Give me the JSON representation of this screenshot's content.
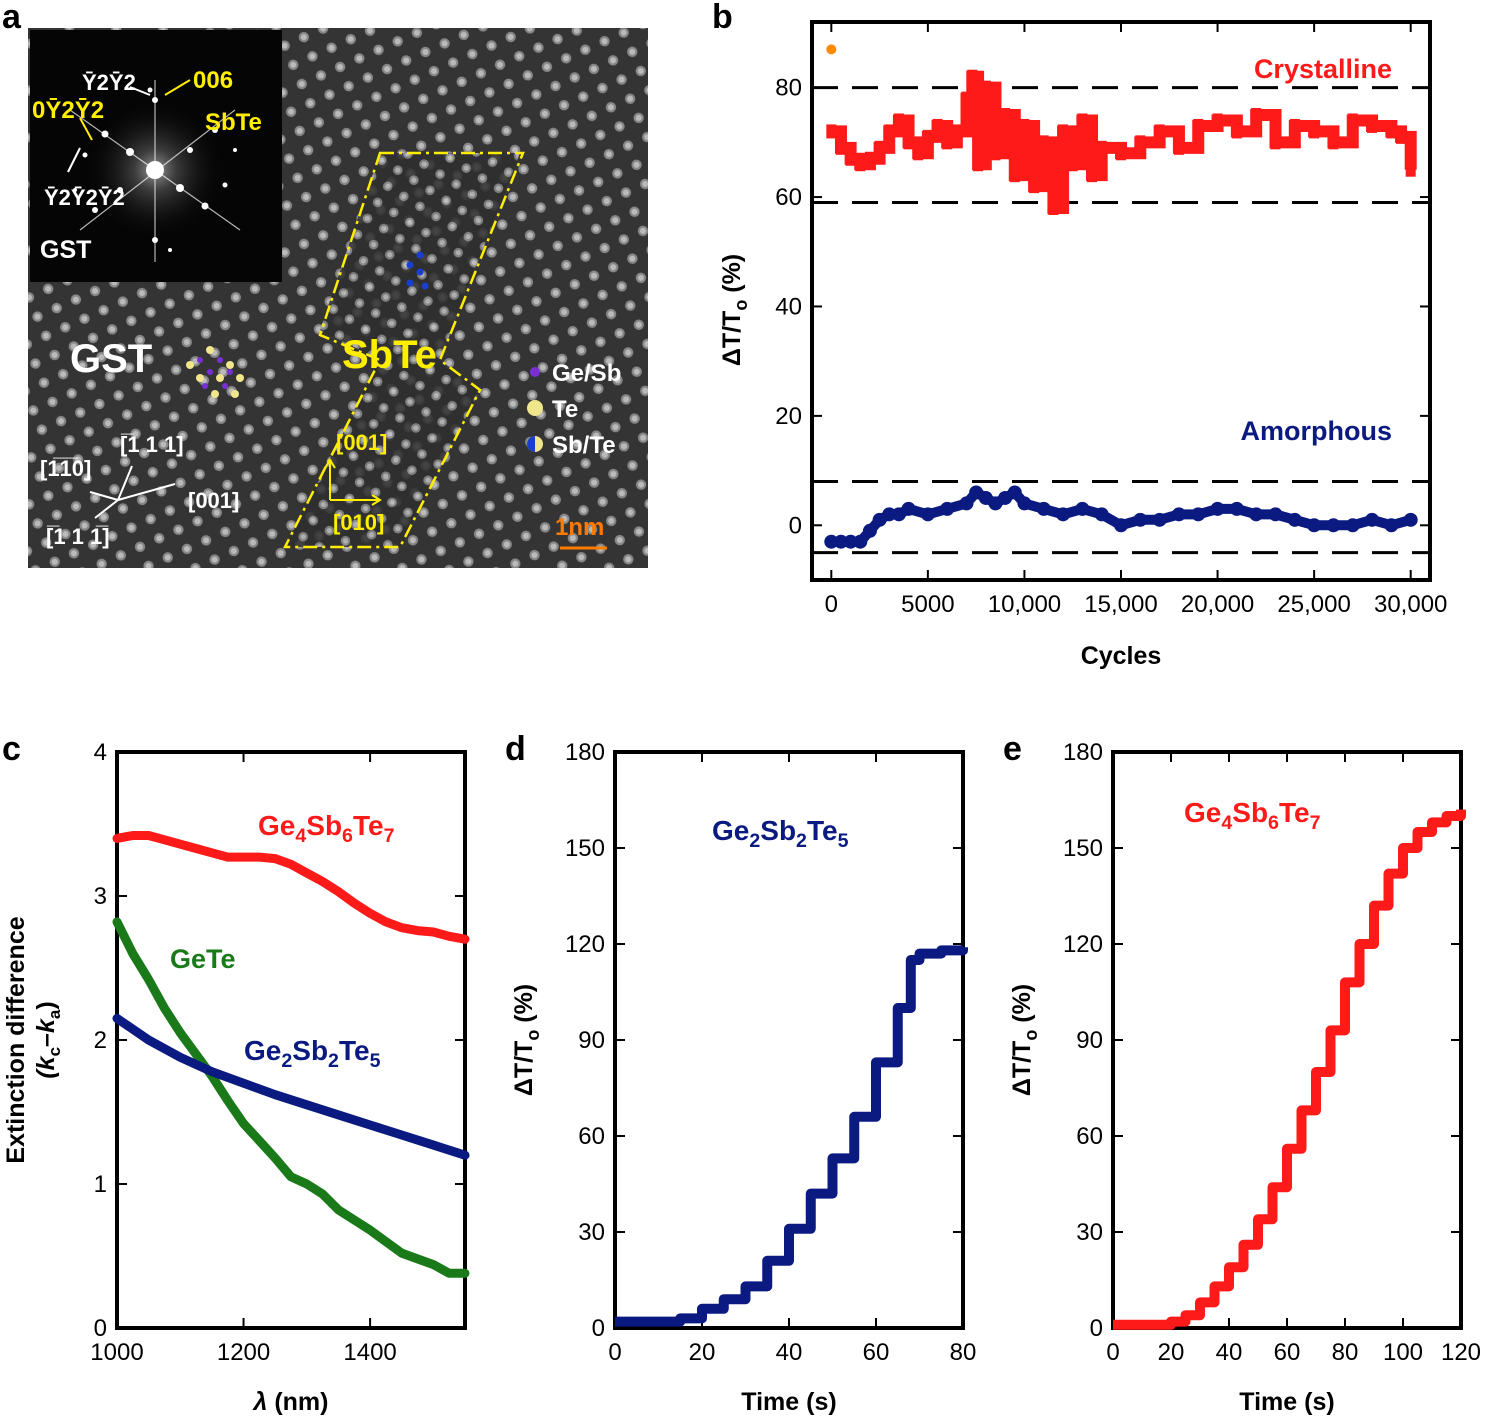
{
  "panels": {
    "a": {
      "letter": "a",
      "inset": {
        "spots": [
          "Ȳ2Ȳ2",
          "006",
          "0Ȳ2Ȳ2",
          "Ȳ2Ȳ2Ȳ2"
        ],
        "spot_006_sub": "SbTe",
        "label": "GST"
      },
      "region_labels": {
        "gst": "GST",
        "sbte": "SbTe"
      },
      "legend": [
        "Ge/Sb",
        "Te",
        "Sb/Te"
      ],
      "directions": {
        "d1": "[̅110]",
        "d2": "[̅111]",
        "d3": "[001]",
        "d4": "[̅111̅]",
        "sb_up": "[001]",
        "sb_right": "[010]"
      },
      "dir_text": {
        "d1": "[1̅1̅0]",
        "d2": "[̅1 1 1]",
        "d3": "[001]",
        "d4": "[̅1 1 1̅]"
      },
      "scalebar": "1nm",
      "colors": {
        "yellow": "#ffee00",
        "orange": "#ff7a00",
        "gesb": "#7a2ed8",
        "te": "#f0e68c",
        "sbte": "#1a3fd0"
      }
    },
    "b": {
      "letter": "b"
    },
    "c": {
      "letter": "c"
    },
    "d": {
      "letter": "d"
    },
    "e": {
      "letter": "e"
    }
  },
  "chart_data": [
    {
      "id": "b",
      "type": "scatter",
      "xlabel": "Cycles",
      "ylabel": "ΔT/T",
      "ylabel_sub": "o",
      "ylabel_tail": " (%)",
      "xlim": [
        -1000,
        31000
      ],
      "ylim": [
        -10,
        92
      ],
      "xticks": [
        0,
        5000,
        10000,
        15000,
        20000,
        25000,
        30000
      ],
      "xtick_labels": [
        "0",
        "5000",
        "10,000",
        "15,000",
        "20,000",
        "25,000",
        "30,000"
      ],
      "yticks": [
        0,
        20,
        40,
        60,
        80
      ],
      "ytick_labels": [
        "0",
        "20",
        "40",
        "60",
        "80"
      ],
      "hlines": [
        80,
        59,
        8,
        -5
      ],
      "series": [
        {
          "name": "Crystalline",
          "color": "#ff1a1a",
          "x": [
            0,
            500,
            1000,
            1500,
            2000,
            2500,
            3000,
            3500,
            4000,
            4500,
            5000,
            5500,
            6000,
            6500,
            7000,
            7300,
            7600,
            8000,
            8500,
            9000,
            9500,
            10000,
            10500,
            11000,
            11500,
            12000,
            12500,
            13000,
            13500,
            14000,
            15000,
            16000,
            17000,
            18000,
            19000,
            20000,
            21000,
            22000,
            23000,
            24000,
            25000,
            26000,
            27000,
            28000,
            29000,
            29500,
            30000
          ],
          "values": [
            72,
            69,
            67,
            66,
            67,
            69,
            72,
            74,
            70,
            68,
            71,
            73,
            70,
            72,
            78,
            82,
            66,
            80,
            68,
            75,
            64,
            73,
            62,
            70,
            58,
            72,
            66,
            74,
            64,
            69,
            68,
            70,
            72,
            69,
            73,
            74,
            72,
            75,
            70,
            73,
            72,
            70,
            74,
            73,
            72,
            71,
            65
          ]
        },
        {
          "name": "Amorphous",
          "color": "#0a1a80",
          "x": [
            0,
            500,
            1000,
            1500,
            2000,
            2500,
            3000,
            3500,
            4000,
            5000,
            6000,
            7000,
            7500,
            8000,
            8500,
            9000,
            9500,
            10000,
            11000,
            12000,
            13000,
            14000,
            15000,
            16000,
            17000,
            18000,
            19000,
            20000,
            21000,
            22000,
            23000,
            24000,
            25000,
            26000,
            27000,
            28000,
            29000,
            30000
          ],
          "values": [
            -3,
            -3,
            -3,
            -3,
            -1,
            1,
            2,
            2,
            3,
            2,
            3,
            4,
            6,
            5,
            4,
            5,
            6,
            4,
            3,
            2,
            3,
            2,
            0,
            1,
            1,
            2,
            2,
            3,
            3,
            2,
            2,
            1,
            0,
            0,
            0,
            1,
            0,
            1
          ]
        },
        {
          "name": "outlier",
          "color": "#ff8800",
          "x": [
            0
          ],
          "values": [
            87
          ]
        }
      ],
      "labels": {
        "crystalline": "Crystalline",
        "amorphous": "Amorphous"
      }
    },
    {
      "id": "c",
      "type": "line",
      "xlabel_sym": "λ",
      "xlabel_tail": " (nm)",
      "ylabel_line1": "Extinction difference",
      "ylabel_line2_open": "(k",
      "ylabel_line2_c": "c",
      "ylabel_line2_mid": "–k",
      "ylabel_line2_a": "a",
      "ylabel_line2_close": ")",
      "xlim": [
        1000,
        1550
      ],
      "ylim": [
        0,
        4
      ],
      "xticks": [
        1000,
        1200,
        1400
      ],
      "xtick_labels": [
        "1000",
        "1200",
        "1400"
      ],
      "yticks": [
        0,
        1,
        2,
        3,
        4
      ],
      "ytick_labels": [
        "0",
        "1",
        "2",
        "3",
        "4"
      ],
      "series": [
        {
          "name": "Ge4Sb6Te7",
          "color": "#ff1a1a",
          "x": [
            1000,
            1025,
            1050,
            1075,
            1100,
            1125,
            1150,
            1175,
            1200,
            1225,
            1250,
            1275,
            1300,
            1325,
            1350,
            1375,
            1400,
            1425,
            1450,
            1475,
            1500,
            1525,
            1550
          ],
          "values": [
            3.4,
            3.42,
            3.42,
            3.39,
            3.36,
            3.33,
            3.3,
            3.27,
            3.27,
            3.27,
            3.26,
            3.22,
            3.16,
            3.1,
            3.03,
            2.95,
            2.88,
            2.82,
            2.78,
            2.76,
            2.75,
            2.72,
            2.7
          ]
        },
        {
          "name": "GeTe",
          "color": "#1a7a1a",
          "x": [
            1000,
            1025,
            1050,
            1075,
            1100,
            1125,
            1150,
            1175,
            1200,
            1225,
            1250,
            1275,
            1300,
            1325,
            1350,
            1375,
            1400,
            1425,
            1450,
            1475,
            1500,
            1525,
            1550
          ],
          "values": [
            2.82,
            2.6,
            2.42,
            2.22,
            2.05,
            1.9,
            1.75,
            1.58,
            1.42,
            1.3,
            1.18,
            1.05,
            1.0,
            0.93,
            0.82,
            0.75,
            0.68,
            0.6,
            0.52,
            0.48,
            0.44,
            0.38,
            0.38
          ]
        },
        {
          "name": "Ge2Sb2Te5",
          "color": "#0a1a80",
          "x": [
            1000,
            1050,
            1100,
            1150,
            1200,
            1250,
            1300,
            1350,
            1400,
            1450,
            1500,
            1550
          ],
          "values": [
            2.15,
            2.0,
            1.88,
            1.78,
            1.7,
            1.62,
            1.55,
            1.48,
            1.41,
            1.34,
            1.27,
            1.2
          ]
        }
      ],
      "labels": {
        "s1": [
          "Ge",
          "4",
          "Sb",
          "6",
          "Te",
          "7"
        ],
        "s2": "GeTe",
        "s3": [
          "Ge",
          "2",
          "Sb",
          "2",
          "Te",
          "5"
        ]
      }
    },
    {
      "id": "d",
      "type": "line",
      "xlabel": "Time (s)",
      "ylabel": "ΔT/T",
      "ylabel_sub": "o",
      "ylabel_tail": " (%)",
      "xlim": [
        0,
        80
      ],
      "ylim": [
        0,
        180
      ],
      "xticks": [
        0,
        20,
        40,
        60,
        80
      ],
      "xtick_labels": [
        "0",
        "20",
        "40",
        "60",
        "80"
      ],
      "yticks": [
        0,
        30,
        60,
        90,
        120,
        150,
        180
      ],
      "ytick_labels": [
        "0",
        "30",
        "60",
        "90",
        "120",
        "150",
        "180"
      ],
      "series": [
        {
          "name": "Ge2Sb2Te5",
          "color": "#0a1a80",
          "x": [
            0,
            5,
            10,
            15,
            20,
            25,
            30,
            35,
            40,
            45,
            50,
            55,
            60,
            65,
            68,
            70,
            75,
            80
          ],
          "values": [
            2,
            2,
            2,
            3,
            6,
            9,
            13,
            21,
            31,
            42,
            53,
            66,
            83,
            100,
            115,
            117,
            118,
            119
          ]
        }
      ],
      "labels": {
        "s1": [
          "Ge",
          "2",
          "Sb",
          "2",
          "Te",
          "5"
        ]
      }
    },
    {
      "id": "e",
      "type": "line",
      "xlabel": "Time (s)",
      "ylabel": "ΔT/T",
      "ylabel_sub": "o",
      "ylabel_tail": " (%)",
      "xlim": [
        0,
        120
      ],
      "ylim": [
        0,
        180
      ],
      "xticks": [
        0,
        20,
        40,
        60,
        80,
        100,
        120
      ],
      "xtick_labels": [
        "0",
        "20",
        "40",
        "60",
        "80",
        "100",
        "120"
      ],
      "yticks": [
        0,
        30,
        60,
        90,
        120,
        150,
        180
      ],
      "ytick_labels": [
        "0",
        "30",
        "60",
        "90",
        "120",
        "150",
        "180"
      ],
      "series": [
        {
          "name": "Ge4Sb6Te7",
          "color": "#ff1a1a",
          "x": [
            0,
            10,
            20,
            25,
            30,
            35,
            40,
            45,
            50,
            55,
            60,
            65,
            70,
            75,
            80,
            85,
            90,
            95,
            100,
            105,
            110,
            115,
            120
          ],
          "values": [
            1,
            1,
            2,
            4,
            8,
            13,
            19,
            26,
            34,
            44,
            56,
            68,
            80,
            93,
            108,
            120,
            132,
            142,
            150,
            155,
            158,
            160,
            162
          ]
        }
      ],
      "labels": {
        "s1": [
          "Ge",
          "4",
          "Sb",
          "6",
          "Te",
          "7"
        ]
      }
    }
  ]
}
